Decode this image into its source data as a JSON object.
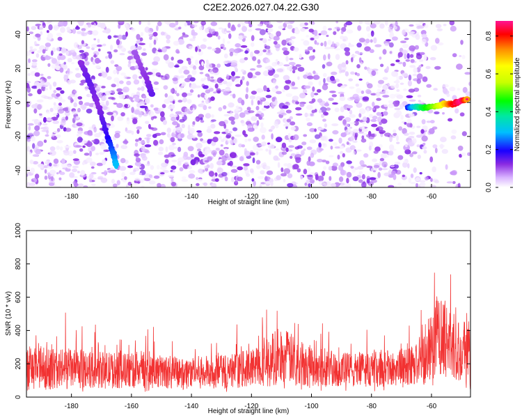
{
  "title": "C2E2.2026.027.04.22.G30",
  "chart_data": [
    {
      "type": "heatmap",
      "name": "spectrogram",
      "xlabel": "Height of straight line (km)",
      "ylabel": "Frequency (Hz)",
      "xlim": [
        -195,
        -47
      ],
      "ylim": [
        -50,
        48
      ],
      "xticks": [
        -180,
        -160,
        -140,
        -120,
        -100,
        -80,
        -60
      ],
      "yticks": [
        -40,
        -20,
        0,
        20,
        40
      ],
      "colorbar": {
        "label": "Normalized spectral amplitude",
        "range": [
          0,
          0.88
        ],
        "ticks": [
          0.0,
          0.2,
          0.4,
          0.6,
          0.8
        ],
        "tick_labels": [
          "0.0",
          "0.2",
          "0.4",
          "0.6",
          "0.8"
        ]
      },
      "features": [
        {
          "name": "noise-blobs",
          "description": "random low-amplitude speckle across the full domain, sparser beyond -60 km"
        },
        {
          "name": "descending-track-1",
          "points": [
            [
              -177,
              24
            ],
            [
              -174,
              12
            ],
            [
              -171,
              -2
            ],
            [
              -168,
              -20
            ],
            [
              -166,
              -30
            ],
            [
              -165,
              -38
            ]
          ],
          "amplitude": [
            0.12,
            0.15,
            0.12,
            0.18,
            0.25,
            0.3
          ]
        },
        {
          "name": "descending-track-2",
          "points": [
            [
              -159,
              30
            ],
            [
              -155,
              14
            ],
            [
              -153,
              4
            ]
          ],
          "amplitude": [
            0.1,
            0.12,
            0.15
          ]
        },
        {
          "name": "strong-signal-band",
          "points": [
            [
              -68,
              -3
            ],
            [
              -65,
              -2.5
            ],
            [
              -62,
              -3
            ],
            [
              -58,
              -2
            ],
            [
              -56,
              -1
            ],
            [
              -53,
              -1
            ],
            [
              -50,
              1
            ],
            [
              -48,
              2
            ]
          ],
          "amplitude": [
            0.2,
            0.35,
            0.45,
            0.55,
            0.65,
            0.8,
            0.88,
            0.7
          ]
        }
      ]
    },
    {
      "type": "line",
      "name": "snr",
      "xlabel": "Height of straight line (km)",
      "ylabel": "SNR (10 * v/v)",
      "xlim": [
        -195,
        -47
      ],
      "ylim": [
        0,
        1000
      ],
      "xticks": [
        -180,
        -160,
        -140,
        -120,
        -100,
        -80,
        -60
      ],
      "yticks": [
        0,
        200,
        400,
        600,
        800,
        1000
      ],
      "color": "#f23232",
      "series": [
        {
          "name": "SNR envelope",
          "x": [
            -195,
            -190,
            -185,
            -180,
            -175,
            -170,
            -165,
            -160,
            -155,
            -150,
            -145,
            -140,
            -135,
            -130,
            -125,
            -120,
            -115,
            -112,
            -110,
            -108,
            -105,
            -100,
            -95,
            -90,
            -85,
            -80,
            -75,
            -70,
            -65,
            -62,
            -60,
            -58,
            -56,
            -54,
            -52,
            -50,
            -48,
            -47
          ],
          "baseline": [
            175,
            170,
            170,
            168,
            165,
            162,
            160,
            158,
            155,
            152,
            150,
            148,
            150,
            152,
            160,
            175,
            210,
            240,
            250,
            240,
            215,
            185,
            170,
            165,
            165,
            168,
            170,
            180,
            200,
            240,
            320,
            380,
            360,
            330,
            300,
            270,
            250,
            260
          ],
          "spread": [
            160,
            150,
            145,
            140,
            135,
            130,
            130,
            125,
            125,
            120,
            115,
            115,
            118,
            120,
            125,
            135,
            170,
            200,
            210,
            190,
            170,
            145,
            130,
            125,
            125,
            125,
            128,
            135,
            150,
            200,
            260,
            300,
            280,
            250,
            230,
            220,
            250,
            300
          ]
        }
      ]
    }
  ]
}
